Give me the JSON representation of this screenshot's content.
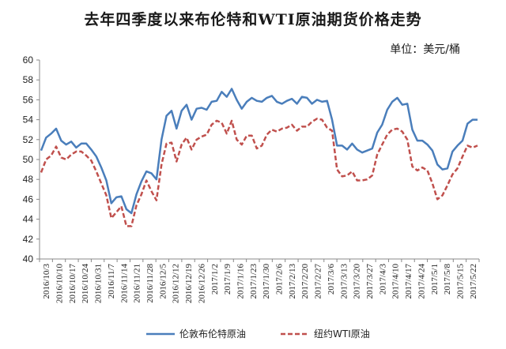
{
  "chart_data": {
    "type": "line",
    "title": "去年四季度以来布伦特和WTI原油期货价格走势",
    "unit": "单位：美元/桶",
    "ylim": [
      40,
      60
    ],
    "yticks": [
      "40",
      "42",
      "44",
      "46",
      "48",
      "50",
      "52",
      "54",
      "56",
      "58",
      "60"
    ],
    "grid": false,
    "legend_position": "bottom",
    "x_tick_labels": [
      "2016/10/3",
      "2016/10/10",
      "2016/10/17",
      "2016/10/24",
      "2016/10/31",
      "2016/11/7",
      "2016/11/14",
      "2016/11/21",
      "2016/11/28",
      "2016/12/5",
      "2016/12/12",
      "2016/12/19",
      "2016/12/26",
      "2017/1/2",
      "2017/1/9",
      "2017/1/16",
      "2017/1/23",
      "2017/1/30",
      "2017/2/6",
      "2017/2/13",
      "2017/2/20",
      "2017/2/27",
      "2017/3/6",
      "2017/3/13",
      "2017/3/20",
      "2017/3/27",
      "2017/4/3",
      "2017/4/10",
      "2017/4/17",
      "2017/4/24",
      "2017/5/1",
      "2017/5/8",
      "2017/5/15",
      "2017/5/22"
    ],
    "series": [
      {
        "name": "伦敦布伦特原油",
        "color": "#4a7ebb",
        "style": "solid",
        "values": [
          50.9,
          52.2,
          52.6,
          53.1,
          51.9,
          51.5,
          51.8,
          51.2,
          51.6,
          51.6,
          51.0,
          50.3,
          49.2,
          47.9,
          45.6,
          46.2,
          46.3,
          45.0,
          44.6,
          46.5,
          47.8,
          48.8,
          48.6,
          48.0,
          52.0,
          54.4,
          54.9,
          53.1,
          54.9,
          55.5,
          54.0,
          55.1,
          55.2,
          55.0,
          55.8,
          55.9,
          56.8,
          56.3,
          57.1,
          56.0,
          55.1,
          55.8,
          56.2,
          55.9,
          55.8,
          56.2,
          56.4,
          55.8,
          55.6,
          55.9,
          56.1,
          55.6,
          56.3,
          56.2,
          55.6,
          56.0,
          55.8,
          55.9,
          54.0,
          51.4,
          51.4,
          51.0,
          51.6,
          51.0,
          50.7,
          50.9,
          51.1,
          52.7,
          53.5,
          55.0,
          55.8,
          56.2,
          55.5,
          55.6,
          53.0,
          51.9,
          51.9,
          51.5,
          50.9,
          49.5,
          49.0,
          49.1,
          50.8,
          51.4,
          51.9,
          53.6,
          54.0,
          54.0
        ]
      },
      {
        "name": "纽约WTI原油",
        "color": "#c0504d",
        "style": "dashed",
        "values": [
          48.7,
          50.0,
          50.4,
          51.3,
          50.2,
          50.0,
          50.5,
          50.8,
          50.8,
          50.4,
          49.9,
          48.8,
          47.6,
          46.4,
          44.1,
          44.7,
          45.3,
          43.3,
          43.3,
          45.4,
          46.5,
          47.9,
          46.8,
          45.9,
          49.5,
          51.6,
          51.7,
          49.8,
          51.5,
          52.2,
          51.0,
          52.0,
          52.3,
          52.5,
          53.5,
          53.9,
          53.7,
          52.6,
          53.9,
          52.0,
          51.5,
          52.4,
          52.4,
          51.1,
          51.4,
          52.5,
          53.0,
          52.8,
          53.1,
          53.2,
          53.5,
          52.9,
          53.3,
          53.3,
          53.8,
          54.1,
          54.0,
          53.2,
          52.9,
          49.0,
          48.3,
          48.4,
          48.8,
          47.9,
          47.9,
          48.0,
          48.4,
          50.5,
          51.5,
          52.5,
          53.0,
          53.1,
          52.8,
          52.0,
          49.3,
          48.9,
          49.2,
          48.9,
          47.6,
          46.0,
          46.4,
          47.4,
          48.5,
          49.1,
          50.3,
          51.4,
          51.2,
          51.4
        ]
      }
    ]
  }
}
